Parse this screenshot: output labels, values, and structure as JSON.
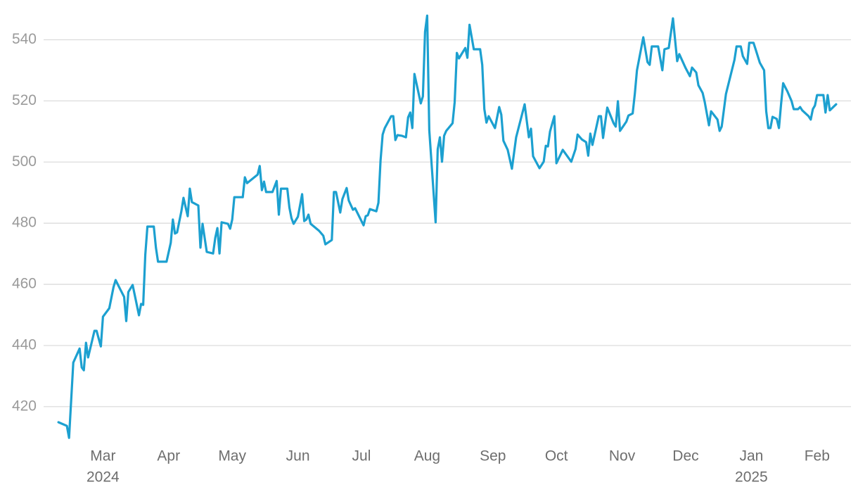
{
  "chart_data": {
    "type": "line",
    "color": "#1ca0d0",
    "ylim": [
      408,
      553
    ],
    "yticks": [
      420,
      440,
      460,
      480,
      500,
      520,
      540
    ],
    "xlim": [
      -28,
      353
    ],
    "xticks": [
      {
        "value": 0,
        "label": "Mar"
      },
      {
        "value": 31,
        "label": "Apr"
      },
      {
        "value": 61,
        "label": "May"
      },
      {
        "value": 92,
        "label": "Jun"
      },
      {
        "value": 122,
        "label": "Jul"
      },
      {
        "value": 153,
        "label": "Aug"
      },
      {
        "value": 184,
        "label": "Sep"
      },
      {
        "value": 214,
        "label": "Oct"
      },
      {
        "value": 245,
        "label": "Nov"
      },
      {
        "value": 275,
        "label": "Dec"
      },
      {
        "value": 306,
        "label": "Jan"
      },
      {
        "value": 337,
        "label": "Feb"
      }
    ],
    "year_ticks": [
      {
        "value": 0,
        "label": "2024"
      },
      {
        "value": 306,
        "label": "2025"
      }
    ],
    "grid": true,
    "x": [
      -21,
      -17,
      -16,
      -14,
      -11,
      -10,
      -9,
      -8,
      -7,
      -4,
      -3,
      -1,
      0,
      3,
      5,
      6,
      8,
      10,
      11,
      12,
      14,
      17,
      18,
      19,
      20,
      21,
      24,
      25,
      26,
      30,
      32,
      33,
      34,
      35,
      37,
      38,
      40,
      41,
      42,
      45,
      46,
      47,
      49,
      52,
      53,
      54,
      55,
      56,
      59,
      60,
      61,
      62,
      66,
      67,
      68,
      73,
      74,
      75,
      76,
      77,
      80,
      82,
      83,
      84,
      87,
      88,
      89,
      90,
      92,
      94,
      95,
      96,
      97,
      98,
      102,
      104,
      105,
      108,
      109,
      110,
      112,
      113,
      115,
      116,
      118,
      119,
      123,
      124,
      125,
      126,
      129,
      130,
      131,
      132,
      133,
      136,
      137,
      138,
      139,
      141,
      143,
      144,
      145,
      146,
      147,
      150,
      151,
      152,
      153,
      154,
      157,
      158,
      159,
      160,
      161,
      162,
      165,
      166,
      167,
      168,
      171,
      172,
      173,
      175,
      178,
      179,
      180,
      181,
      182,
      185,
      187,
      188,
      189,
      191,
      193,
      195,
      199,
      201,
      202,
      203,
      206,
      208,
      209,
      210,
      211,
      213,
      214,
      217,
      221,
      223,
      224,
      226,
      228,
      229,
      230,
      231,
      234,
      235,
      236,
      238,
      241,
      242,
      243,
      244,
      247,
      248,
      250,
      251,
      252,
      255,
      257,
      258,
      259,
      262,
      264,
      265,
      267,
      269,
      271,
      272,
      275,
      277,
      278,
      280,
      281,
      283,
      284,
      286,
      287,
      290,
      291,
      292,
      294,
      298,
      299,
      301,
      302,
      304,
      305,
      307,
      308,
      310,
      312,
      313,
      314,
      315,
      316,
      318,
      319,
      320,
      321,
      323,
      325,
      326,
      328,
      329,
      330,
      333,
      334,
      335,
      336,
      337,
      340,
      341,
      342,
      343,
      346
    ],
    "values": [
      414.9,
      413.7,
      409.8,
      434.4,
      439.0,
      432.8,
      431.9,
      440.9,
      436.1,
      444.8,
      444.8,
      439.7,
      449.4,
      452.2,
      459.1,
      461.4,
      458.6,
      455.9,
      448.0,
      457.5,
      459.8,
      449.9,
      453.6,
      453.3,
      469.7,
      478.9,
      478.9,
      472.0,
      467.4,
      467.4,
      473.6,
      481.2,
      476.6,
      477.0,
      483.9,
      488.3,
      482.3,
      491.3,
      486.9,
      485.8,
      472.0,
      479.8,
      470.6,
      470.1,
      475.2,
      478.4,
      470.1,
      480.3,
      479.8,
      478.2,
      481.2,
      488.5,
      488.5,
      495.0,
      493.1,
      495.9,
      498.7,
      490.8,
      493.6,
      490.2,
      490.2,
      493.8,
      482.8,
      491.3,
      491.3,
      485.1,
      481.6,
      479.8,
      482.1,
      489.5,
      480.7,
      481.2,
      482.8,
      479.8,
      477.5,
      475.9,
      473.1,
      474.5,
      490.2,
      490.2,
      483.5,
      487.9,
      491.5,
      487.4,
      484.4,
      484.9,
      479.3,
      482.3,
      482.6,
      484.6,
      483.9,
      486.7,
      500.5,
      509.0,
      511.1,
      515.0,
      515.0,
      507.2,
      508.8,
      508.6,
      508.1,
      514.6,
      516.2,
      511.1,
      528.8,
      519.2,
      521.5,
      542.6,
      547.9,
      510.4,
      480.3,
      504.2,
      508.1,
      500.1,
      508.6,
      510.2,
      512.7,
      519.6,
      535.7,
      533.9,
      537.3,
      534.1,
      544.9,
      536.9,
      536.9,
      531.8,
      517.3,
      512.9,
      515.0,
      511.1,
      518.0,
      515.5,
      507.0,
      504.0,
      497.8,
      508.1,
      518.9,
      508.1,
      510.9,
      501.9,
      498.0,
      500.1,
      505.3,
      505.1,
      510.0,
      515.0,
      499.6,
      504.0,
      500.1,
      504.2,
      509.0,
      507.4,
      506.5,
      502.1,
      509.3,
      505.6,
      515.0,
      515.0,
      507.9,
      517.8,
      512.7,
      511.6,
      519.9,
      510.2,
      513.2,
      515.2,
      515.9,
      522.4,
      530.0,
      540.8,
      532.7,
      531.8,
      537.8,
      537.8,
      530.0,
      536.9,
      537.3,
      547.0,
      533.0,
      535.3,
      530.7,
      528.1,
      530.9,
      529.3,
      525.1,
      522.6,
      519.6,
      512.0,
      516.6,
      513.9,
      510.2,
      511.6,
      522.2,
      533.4,
      537.8,
      537.8,
      534.6,
      532.1,
      539.0,
      539.0,
      536.9,
      532.5,
      530.0,
      516.6,
      511.1,
      511.1,
      514.8,
      514.1,
      511.1,
      518.9,
      525.8,
      523.1,
      519.9,
      517.3,
      517.3,
      518.0,
      516.9,
      515.0,
      513.9,
      517.3,
      518.5,
      521.9,
      521.9,
      516.2,
      521.9,
      516.9,
      518.9
    ]
  }
}
